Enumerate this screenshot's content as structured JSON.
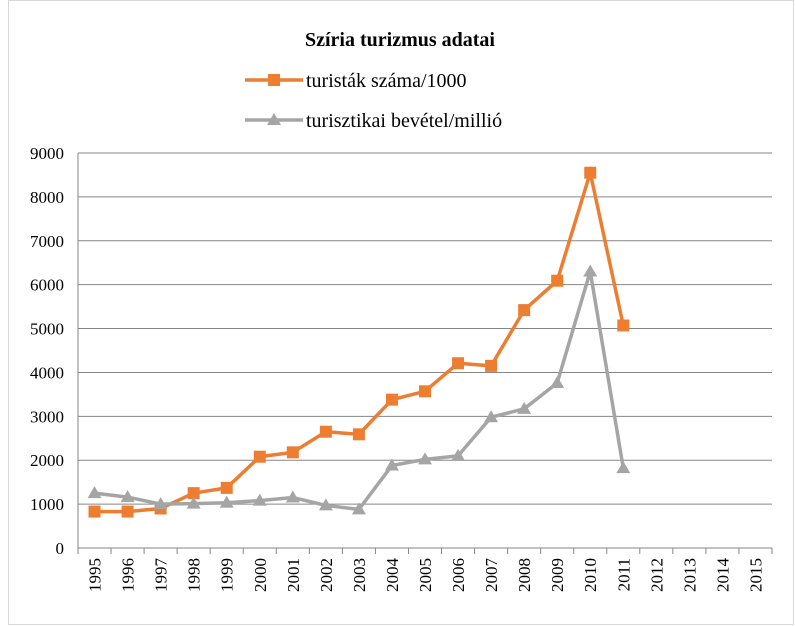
{
  "chart_data": {
    "type": "line",
    "title": "Szíria turizmus adatai",
    "categories": [
      "1995",
      "1996",
      "1997",
      "1998",
      "1999",
      "2000",
      "2001",
      "2002",
      "2003",
      "2004",
      "2005",
      "2006",
      "2007",
      "2008",
      "2009",
      "2010",
      "2011",
      "2012",
      "2013",
      "2014",
      "2015"
    ],
    "series": [
      {
        "name": "turisták száma/1000",
        "color": "#ed7d31",
        "marker": "square",
        "values": [
          830,
          830,
          900,
          1250,
          1370,
          2080,
          2180,
          2650,
          2590,
          3380,
          3570,
          4210,
          4150,
          5420,
          6090,
          8550,
          5070,
          null,
          null,
          null,
          null
        ]
      },
      {
        "name": "turisztikai bevétel/millió",
        "color": "#a5a5a5",
        "marker": "triangle",
        "values": [
          1250,
          1160,
          1000,
          1010,
          1030,
          1080,
          1150,
          970,
          880,
          1880,
          2020,
          2100,
          2980,
          3170,
          3760,
          6300,
          1820,
          null,
          null,
          null,
          null
        ]
      }
    ],
    "ylim": [
      0,
      9000
    ],
    "yticks": [
      0,
      1000,
      2000,
      3000,
      4000,
      5000,
      6000,
      7000,
      8000,
      9000
    ],
    "grid": true
  }
}
